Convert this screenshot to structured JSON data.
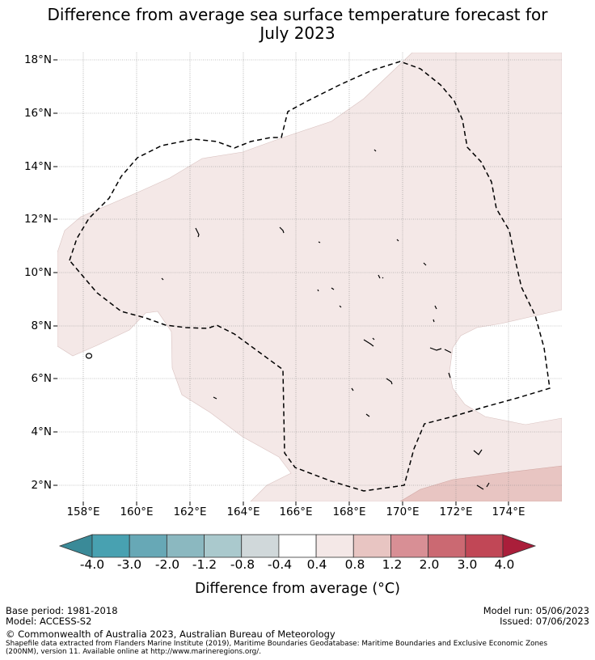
{
  "title": {
    "line1": "Difference from average sea surface temperature forecast for",
    "line2": "July 2023"
  },
  "map": {
    "lat_labels": [
      "18°N",
      "16°N",
      "14°N",
      "12°N",
      "10°N",
      "8°N",
      "6°N",
      "4°N",
      "2°N"
    ],
    "lon_labels": [
      "158°E",
      "160°E",
      "162°E",
      "164°E",
      "166°E",
      "168°E",
      "170°E",
      "172°E",
      "174°E"
    ],
    "colors": {
      "band_0p4_0p8": "#f4e8e7",
      "band_0p8_1p2": "#e8c5c2",
      "boundary": "#000000",
      "grid": "#888888"
    }
  },
  "colorbar": {
    "ticks": [
      "-4.0",
      "-3.0",
      "-2.0",
      "-1.2",
      "-0.8",
      "-0.4",
      "0.4",
      "0.8",
      "1.2",
      "2.0",
      "3.0",
      "4.0"
    ],
    "colors": [
      "#3a8a98",
      "#48a1b1",
      "#67a8b6",
      "#8bb8c0",
      "#aac9cd",
      "#d0d8da",
      "#ffffff",
      "#f4e8e7",
      "#e8c5c2",
      "#d88f95",
      "#cb6972",
      "#c14756",
      "#aa1e3a"
    ],
    "label": "Difference from average (°C)"
  },
  "footer": {
    "base_period": "Base period: 1981-2018",
    "model": "Model: ACCESS-S2",
    "model_run": "Model run: 05/06/2023",
    "issued": "Issued: 07/06/2023",
    "copyright": "© Commonwealth of Australia 2023, Australian Bureau of Meteorology",
    "shapefile_line1": "Shapefile data extracted from Flanders Marine Institute (2019), Maritime Boundaries Geodatabase: Maritime Boundaries and Exclusive Economic Zones",
    "shapefile_line2": "(200NM), version 11. Available online at http://www.marineregions.org/."
  }
}
